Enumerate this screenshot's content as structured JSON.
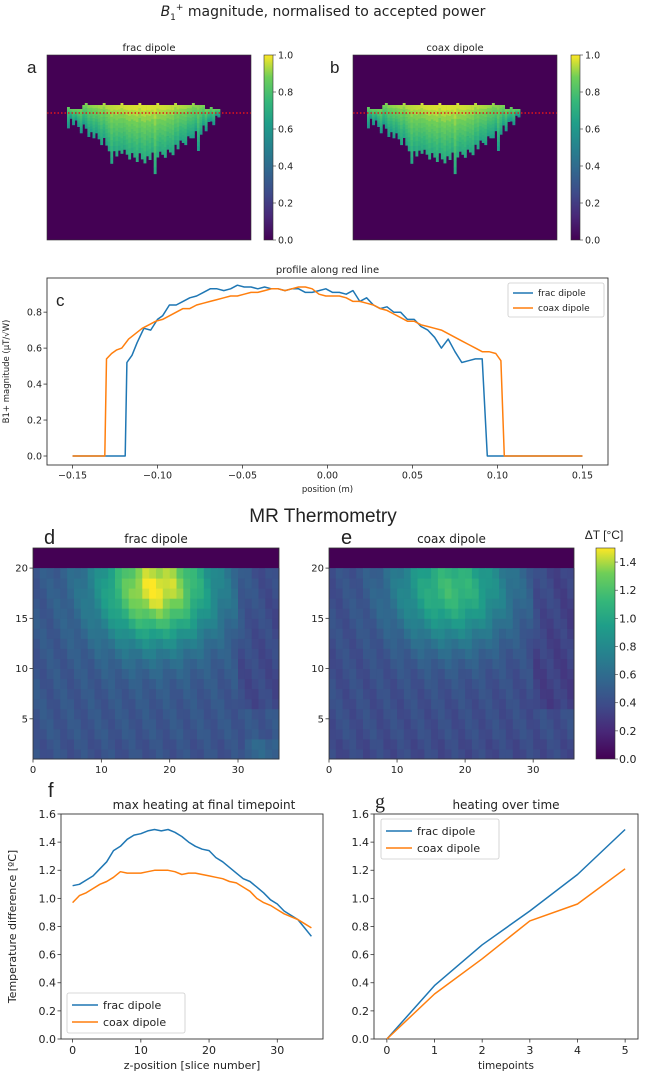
{
  "figure": {
    "top_title_prefix": "B",
    "top_title_sub": "1",
    "top_title_sup": "+",
    "top_title_rest": " magnitude, normalised to accepted power",
    "mid_title": "MR Thermometry"
  },
  "chart_data": [
    {
      "id": "a",
      "type": "heatmap",
      "panel_label": "a",
      "title": "frac dipole",
      "colormap": "viridis",
      "colorbar": {
        "ticks": [
          "0.0",
          "0.2",
          "0.4",
          "0.6",
          "0.8",
          "1.0"
        ],
        "range": [
          0,
          1.0
        ]
      },
      "annotation": "red dotted profile line",
      "grid": false
    },
    {
      "id": "b",
      "type": "heatmap",
      "panel_label": "b",
      "title": "coax dipole",
      "colormap": "viridis",
      "colorbar": {
        "ticks": [
          "0.0",
          "0.2",
          "0.4",
          "0.6",
          "0.8",
          "1.0"
        ],
        "range": [
          0,
          1.0
        ]
      },
      "annotation": "red dotted profile line",
      "grid": false
    },
    {
      "id": "c",
      "type": "line",
      "panel_label": "c",
      "title": "profile along red line",
      "xlabel": "position (m)",
      "ylabel": "B1+ magnitude (µT/√W)",
      "xlim": [
        -0.165,
        0.165
      ],
      "ylim": [
        -0.05,
        0.99
      ],
      "xticks": [
        "−0.15",
        "−0.10",
        "−0.05",
        "0.00",
        "0.05",
        "0.10",
        "0.15"
      ],
      "xtick_values": [
        -0.15,
        -0.1,
        -0.05,
        0.0,
        0.05,
        0.1,
        0.15
      ],
      "yticks": [
        "0.0",
        "0.2",
        "0.4",
        "0.6",
        "0.8"
      ],
      "ytick_values": [
        0.0,
        0.2,
        0.4,
        0.6,
        0.8
      ],
      "legend": "top-right",
      "series": [
        {
          "name": "frac dipole",
          "color": "#1f77b4",
          "x": [
            -0.15,
            -0.119,
            -0.118,
            -0.115,
            -0.112,
            -0.108,
            -0.104,
            -0.1,
            -0.097,
            -0.093,
            -0.089,
            -0.085,
            -0.081,
            -0.077,
            -0.073,
            -0.069,
            -0.065,
            -0.061,
            -0.057,
            -0.053,
            -0.049,
            -0.045,
            -0.041,
            -0.037,
            -0.033,
            -0.029,
            -0.025,
            -0.021,
            -0.017,
            -0.013,
            -0.009,
            -0.005,
            -0.001,
            0.003,
            0.007,
            0.011,
            0.015,
            0.019,
            0.023,
            0.027,
            0.031,
            0.035,
            0.039,
            0.043,
            0.047,
            0.051,
            0.055,
            0.059,
            0.063,
            0.067,
            0.071,
            0.075,
            0.079,
            0.083,
            0.087,
            0.091,
            0.094,
            0.097,
            0.099,
            0.1,
            0.15
          ],
          "y": [
            0,
            0,
            0.52,
            0.56,
            0.63,
            0.71,
            0.7,
            0.76,
            0.78,
            0.84,
            0.84,
            0.86,
            0.88,
            0.89,
            0.91,
            0.93,
            0.93,
            0.92,
            0.93,
            0.95,
            0.94,
            0.94,
            0.93,
            0.94,
            0.93,
            0.93,
            0.92,
            0.93,
            0.93,
            0.91,
            0.91,
            0.92,
            0.93,
            0.91,
            0.91,
            0.9,
            0.92,
            0.86,
            0.88,
            0.84,
            0.82,
            0.83,
            0.8,
            0.8,
            0.76,
            0.76,
            0.72,
            0.7,
            0.66,
            0.6,
            0.65,
            0.58,
            0.52,
            0.53,
            0.54,
            0.54,
            0,
            0,
            0,
            0,
            0
          ]
        },
        {
          "name": "coax dipole",
          "color": "#ff7f0e",
          "x": [
            -0.15,
            -0.131,
            -0.13,
            -0.127,
            -0.124,
            -0.121,
            -0.117,
            -0.113,
            -0.109,
            -0.105,
            -0.101,
            -0.097,
            -0.093,
            -0.089,
            -0.085,
            -0.081,
            -0.077,
            -0.073,
            -0.069,
            -0.065,
            -0.061,
            -0.057,
            -0.053,
            -0.049,
            -0.045,
            -0.041,
            -0.037,
            -0.033,
            -0.029,
            -0.025,
            -0.021,
            -0.017,
            -0.013,
            -0.009,
            -0.005,
            -0.001,
            0.003,
            0.007,
            0.011,
            0.015,
            0.019,
            0.023,
            0.027,
            0.031,
            0.035,
            0.039,
            0.043,
            0.047,
            0.051,
            0.055,
            0.059,
            0.063,
            0.067,
            0.071,
            0.075,
            0.079,
            0.083,
            0.087,
            0.091,
            0.095,
            0.099,
            0.102,
            0.104,
            0.106,
            0.15
          ],
          "y": [
            0,
            0,
            0.54,
            0.57,
            0.59,
            0.6,
            0.65,
            0.68,
            0.71,
            0.73,
            0.75,
            0.76,
            0.78,
            0.8,
            0.82,
            0.82,
            0.84,
            0.85,
            0.86,
            0.87,
            0.88,
            0.89,
            0.89,
            0.9,
            0.91,
            0.91,
            0.92,
            0.93,
            0.93,
            0.92,
            0.93,
            0.94,
            0.94,
            0.93,
            0.9,
            0.89,
            0.89,
            0.89,
            0.88,
            0.86,
            0.86,
            0.85,
            0.84,
            0.82,
            0.81,
            0.79,
            0.77,
            0.75,
            0.75,
            0.73,
            0.72,
            0.71,
            0.7,
            0.68,
            0.66,
            0.64,
            0.62,
            0.6,
            0.58,
            0.58,
            0.57,
            0.53,
            0,
            0,
            0
          ]
        }
      ]
    },
    {
      "id": "d",
      "type": "heatmap",
      "panel_label": "d",
      "title": "frac dipole",
      "colormap": "viridis",
      "xlim": [
        0,
        36
      ],
      "ylim": [
        1,
        22
      ],
      "xticks": [
        "0",
        "10",
        "20",
        "30"
      ],
      "xtick_values": [
        0,
        10,
        20,
        30
      ],
      "yticks": [
        "5",
        "10",
        "15",
        "20"
      ],
      "ytick_values": [
        5,
        10,
        15,
        20
      ],
      "peak": {
        "x": 18,
        "y": 18,
        "value": 1.5
      },
      "grid": false
    },
    {
      "id": "e",
      "type": "heatmap",
      "panel_label": "e",
      "title": "coax dipole",
      "colormap": "viridis",
      "xlim": [
        0,
        36
      ],
      "ylim": [
        1,
        22
      ],
      "xticks": [
        "0",
        "10",
        "20",
        "30"
      ],
      "xtick_values": [
        0,
        10,
        20,
        30
      ],
      "yticks": [
        "5",
        "10",
        "15",
        "20"
      ],
      "ytick_values": [
        5,
        10,
        15,
        20
      ],
      "peak": {
        "x": 18,
        "y": 18,
        "value": 1.2
      },
      "colorbar": {
        "label": "ΔT [°C]",
        "ticks": [
          "0.0",
          "0.2",
          "0.4",
          "0.6",
          "0.8",
          "1.0",
          "1.2",
          "1.4"
        ],
        "range": [
          0,
          1.5
        ]
      },
      "grid": false
    },
    {
      "id": "f",
      "type": "line",
      "panel_label": "f",
      "title": "max heating at final timepoint",
      "xlabel": "z-position [slice number]",
      "ylabel": "Temperature difference [ºC]",
      "xlim": [
        -1.7,
        36.7
      ],
      "ylim": [
        0,
        1.6
      ],
      "xticks": [
        "0",
        "10",
        "20",
        "30"
      ],
      "xtick_values": [
        0,
        10,
        20,
        30
      ],
      "yticks": [
        "0.0",
        "0.2",
        "0.4",
        "0.6",
        "0.8",
        "1.0",
        "1.2",
        "1.4",
        "1.6"
      ],
      "ytick_values": [
        0,
        0.2,
        0.4,
        0.6,
        0.8,
        1.0,
        1.2,
        1.4,
        1.6
      ],
      "legend": "lower-left",
      "series": [
        {
          "name": "frac dipole",
          "color": "#1f77b4",
          "x": [
            0,
            1,
            2,
            3,
            4,
            5,
            6,
            7,
            8,
            9,
            10,
            11,
            12,
            13,
            14,
            15,
            16,
            17,
            18,
            19,
            20,
            21,
            22,
            23,
            24,
            25,
            26,
            27,
            28,
            29,
            30,
            31,
            32,
            33,
            34,
            35
          ],
          "y": [
            1.09,
            1.1,
            1.13,
            1.16,
            1.21,
            1.26,
            1.34,
            1.37,
            1.42,
            1.45,
            1.46,
            1.48,
            1.49,
            1.48,
            1.49,
            1.47,
            1.44,
            1.4,
            1.37,
            1.35,
            1.34,
            1.29,
            1.26,
            1.22,
            1.18,
            1.14,
            1.12,
            1.08,
            1.04,
            0.99,
            0.96,
            0.91,
            0.88,
            0.85,
            0.79,
            0.73
          ]
        },
        {
          "name": "coax dipole",
          "color": "#ff7f0e",
          "x": [
            0,
            1,
            2,
            3,
            4,
            5,
            6,
            7,
            8,
            9,
            10,
            11,
            12,
            13,
            14,
            15,
            16,
            17,
            18,
            19,
            20,
            21,
            22,
            23,
            24,
            25,
            26,
            27,
            28,
            29,
            30,
            31,
            32,
            33,
            34,
            35
          ],
          "y": [
            0.97,
            1.02,
            1.04,
            1.07,
            1.1,
            1.12,
            1.15,
            1.19,
            1.18,
            1.18,
            1.18,
            1.19,
            1.2,
            1.2,
            1.2,
            1.19,
            1.17,
            1.18,
            1.18,
            1.17,
            1.16,
            1.15,
            1.14,
            1.12,
            1.11,
            1.08,
            1.05,
            1.0,
            0.97,
            0.95,
            0.92,
            0.89,
            0.87,
            0.85,
            0.82,
            0.79
          ]
        }
      ]
    },
    {
      "id": "g",
      "type": "line",
      "panel_label": "g",
      "title": "heating over time",
      "xlabel": "timepoints",
      "ylabel": "",
      "xlim": [
        -0.27,
        5.27
      ],
      "ylim": [
        0,
        1.6
      ],
      "xticks": [
        "0",
        "1",
        "2",
        "3",
        "4",
        "5"
      ],
      "xtick_values": [
        0,
        1,
        2,
        3,
        4,
        5
      ],
      "yticks": [
        "0.0",
        "0.2",
        "0.4",
        "0.6",
        "0.8",
        "1.0",
        "1.2",
        "1.4",
        "1.6"
      ],
      "ytick_values": [
        0,
        0.2,
        0.4,
        0.6,
        0.8,
        1.0,
        1.2,
        1.4,
        1.6
      ],
      "legend": "top-left",
      "series": [
        {
          "name": "frac dipole",
          "color": "#1f77b4",
          "x": [
            0,
            1,
            2,
            3,
            4,
            5
          ],
          "y": [
            0.0,
            0.38,
            0.67,
            0.91,
            1.17,
            1.49
          ]
        },
        {
          "name": "coax dipole",
          "color": "#ff7f0e",
          "x": [
            0,
            1,
            2,
            3,
            4,
            5
          ],
          "y": [
            0.0,
            0.32,
            0.57,
            0.84,
            0.96,
            1.21
          ]
        }
      ]
    }
  ]
}
